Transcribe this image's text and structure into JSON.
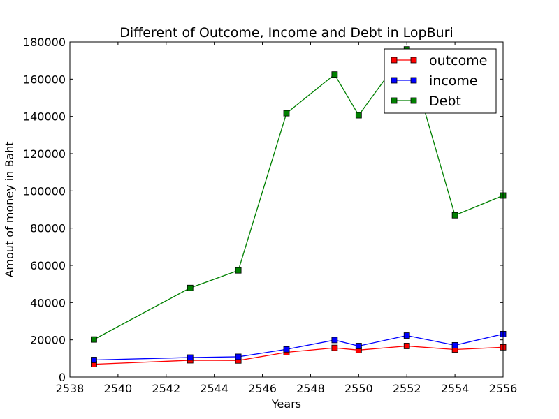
{
  "chart_data": {
    "type": "line",
    "title": "Different of Outcome, Income and Debt in LopBuri",
    "xlabel": "Years",
    "ylabel": "Amout of money in Baht",
    "xlim": [
      2538,
      2556
    ],
    "ylim": [
      0,
      180000
    ],
    "xticks": [
      "2538",
      "2540",
      "2542",
      "2544",
      "2546",
      "2548",
      "2550",
      "2552",
      "2554",
      "2556"
    ],
    "yticks": [
      "0",
      "20000",
      "40000",
      "60000",
      "80000",
      "100000",
      "120000",
      "140000",
      "160000",
      "180000"
    ],
    "grid": false,
    "legend_position": "top-right",
    "x": [
      2539,
      2543,
      2545,
      2547,
      2549,
      2550,
      2552,
      2554,
      2556
    ],
    "series": [
      {
        "name": "outcome",
        "color": "#ff0000",
        "values": [
          6900,
          9000,
          8900,
          13300,
          15700,
          14500,
          16700,
          14800,
          16000
        ]
      },
      {
        "name": "income",
        "color": "#0000ff",
        "values": [
          9200,
          10500,
          10900,
          14900,
          19900,
          16700,
          22300,
          17100,
          23100
        ]
      },
      {
        "name": "Debt",
        "color": "#008000",
        "values": [
          20200,
          47900,
          57300,
          141700,
          162500,
          140600,
          176000,
          86900,
          97500
        ]
      }
    ]
  }
}
